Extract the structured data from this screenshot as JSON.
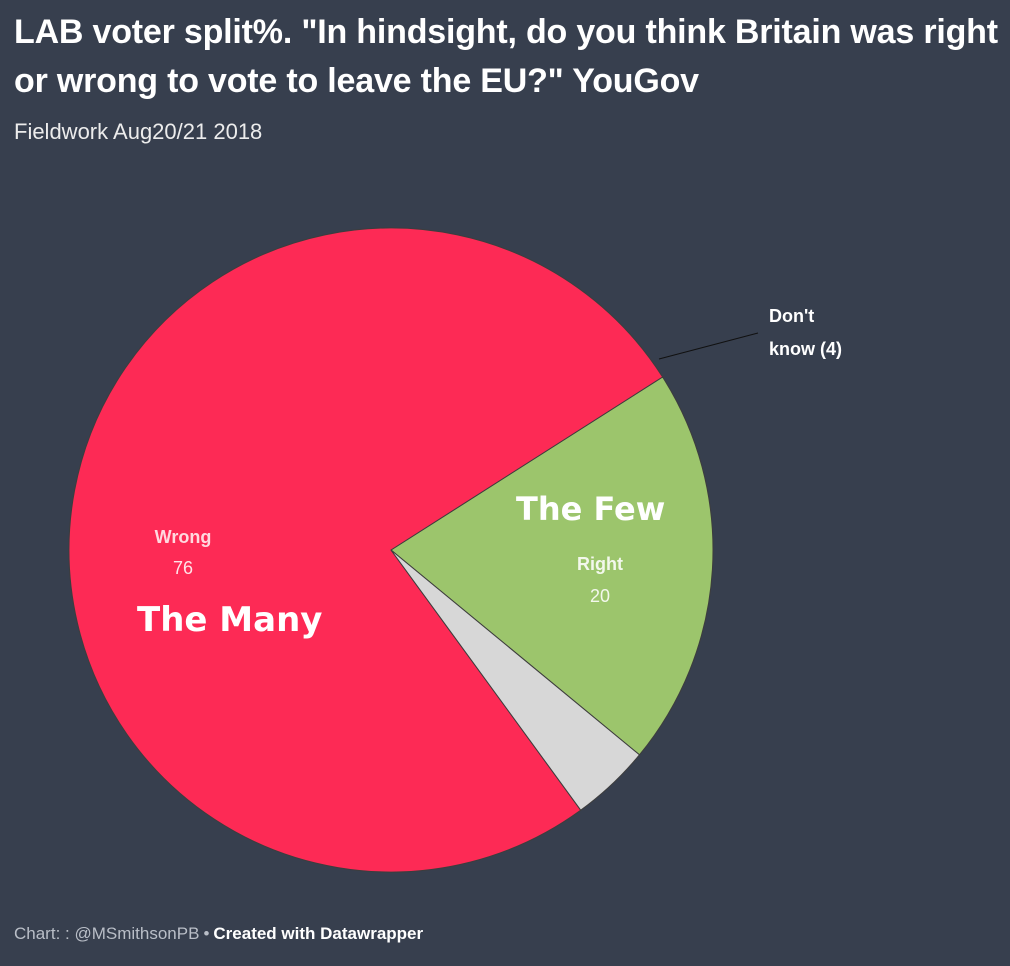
{
  "header": {
    "title": "LAB voter split%. \"In hindsight, do you think Britain was right or wrong to vote to leave the EU?\"  YouGov",
    "subtitle": "Fieldwork Aug20/21 2018"
  },
  "chart_data": {
    "type": "pie",
    "title": "LAB voter split%. \"In hindsight, do you think Britain was right or wrong to vote to leave the EU?\"  YouGov",
    "subtitle": "Fieldwork Aug20/21 2018",
    "slices": [
      {
        "label": "Right",
        "value": 20,
        "color": "#9cc56c"
      },
      {
        "label": "Wrong",
        "value": 76,
        "color": "#fd2a55"
      },
      {
        "label": "Don't know",
        "value": 4,
        "color": "#d7d7d7"
      }
    ],
    "annotations": {
      "dont_know_line1": "Don't",
      "dont_know_line2": "know (4)",
      "many": "The Many",
      "few": "The Few"
    }
  },
  "footer": {
    "source": "Chart: : @MSmithsonPB",
    "separator": "•",
    "credit": "Created with Datawrapper"
  }
}
